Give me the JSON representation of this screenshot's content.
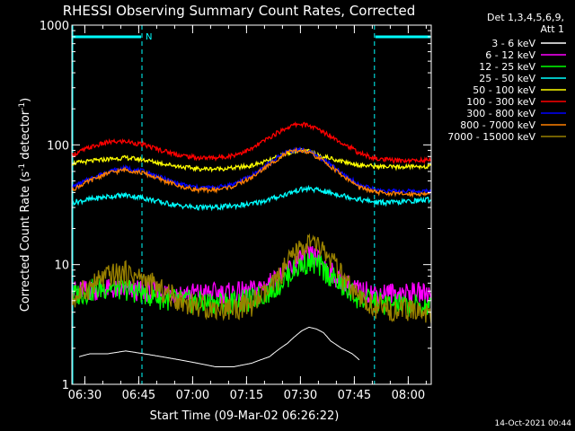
{
  "chart_data": {
    "type": "line",
    "title": "RHESSI Observing Summary Count Rates, Corrected",
    "xlabel": "Start Time (09-Mar-02 06:26:22)",
    "ylabel": "Corrected Count Rate (s",
    "ylabel_sup1": "-1",
    "ylabel_mid": " detector",
    "ylabel_sup2": "-1",
    "ylabel_end": ")",
    "yscale": "log",
    "ylim": [
      1,
      1000
    ],
    "xlim_minutes": [
      0,
      100
    ],
    "x_start_label": "06:26:22",
    "yticks": [
      {
        "value": 1,
        "label": "1"
      },
      {
        "value": 10,
        "label": "10"
      },
      {
        "value": 100,
        "label": "100"
      },
      {
        "value": 1000,
        "label": "1000"
      }
    ],
    "xticks": [
      {
        "t": 3.6,
        "label": "06:30"
      },
      {
        "t": 18.6,
        "label": "06:45"
      },
      {
        "t": 33.6,
        "label": "07:00"
      },
      {
        "t": 48.6,
        "label": "07:15"
      },
      {
        "t": 63.6,
        "label": "07:30"
      },
      {
        "t": 78.6,
        "label": "07:45"
      },
      {
        "t": 93.6,
        "label": "08:00"
      }
    ],
    "legend_header": [
      "Det 1,3,4,5,6,9,",
      "Att 1"
    ],
    "legend_position": "right",
    "night_intervals": [
      [
        0,
        19.5
      ],
      [
        84.2,
        100
      ]
    ],
    "night_marker_label": "N",
    "series": [
      {
        "name": "3 - 6 keV",
        "color": "#ffffff",
        "x": [
          2,
          5,
          10,
          15,
          20,
          25,
          30,
          35,
          40,
          45,
          50,
          55,
          60,
          62,
          64,
          66,
          68,
          70,
          72,
          75,
          78,
          80
        ],
        "y": [
          1.7,
          1.8,
          1.8,
          1.9,
          1.8,
          1.7,
          1.6,
          1.5,
          1.4,
          1.4,
          1.5,
          1.7,
          2.2,
          2.5,
          2.8,
          3.0,
          2.9,
          2.7,
          2.3,
          2.0,
          1.8,
          1.6
        ]
      },
      {
        "name": "6 - 12 keV",
        "color": "#ff00ff",
        "x": [
          0,
          10,
          20,
          30,
          40,
          45,
          50,
          55,
          58,
          61,
          64,
          66,
          68,
          70,
          73,
          76,
          80,
          85,
          90,
          95,
          100
        ],
        "y": [
          6,
          6.2,
          6,
          5.8,
          5.8,
          5.8,
          6,
          7,
          8,
          9.5,
          11,
          12,
          11.5,
          10,
          8,
          7,
          6,
          5.8,
          5.8,
          5.8,
          5.8
        ]
      },
      {
        "name": "12 - 25 keV",
        "color": "#00ff00",
        "x": [
          0,
          5,
          10,
          15,
          20,
          25,
          30,
          35,
          40,
          45,
          50,
          55,
          58,
          61,
          64,
          66,
          68,
          70,
          73,
          76,
          80,
          85,
          90,
          95,
          100
        ],
        "y": [
          5.5,
          6,
          6.5,
          6.2,
          5.8,
          5.2,
          5,
          4.8,
          4.8,
          4.8,
          5,
          6,
          7,
          8.5,
          10,
          10.5,
          10,
          9,
          7.5,
          6.2,
          5.2,
          4.8,
          4.6,
          4.5,
          4.5
        ]
      },
      {
        "name": "25 - 50 keV",
        "color": "#00ffff",
        "x": [
          0,
          5,
          10,
          15,
          20,
          25,
          30,
          35,
          40,
          45,
          50,
          55,
          60,
          63,
          66,
          70,
          75,
          80,
          85,
          90,
          95,
          100
        ],
        "y": [
          33,
          35,
          37,
          38,
          36,
          33,
          31,
          30,
          30,
          31,
          32,
          35,
          39,
          42,
          43,
          41,
          38,
          35,
          33,
          33,
          34,
          35
        ]
      },
      {
        "name": "50 - 100 keV",
        "color": "#ffff00",
        "x": [
          0,
          5,
          10,
          15,
          20,
          25,
          30,
          35,
          40,
          45,
          50,
          55,
          60,
          63,
          66,
          70,
          75,
          80,
          85,
          90,
          95,
          100
        ],
        "y": [
          70,
          73,
          76,
          78,
          75,
          70,
          66,
          63,
          63,
          64,
          67,
          74,
          85,
          90,
          88,
          80,
          73,
          68,
          66,
          65,
          66,
          66
        ]
      },
      {
        "name": "100 - 300 keV",
        "color": "#ff0000",
        "x": [
          0,
          5,
          10,
          15,
          20,
          25,
          30,
          35,
          40,
          45,
          50,
          55,
          60,
          63,
          66,
          70,
          75,
          80,
          85,
          90,
          95,
          100
        ],
        "y": [
          82,
          95,
          105,
          107,
          100,
          90,
          82,
          78,
          78,
          82,
          92,
          115,
          140,
          150,
          145,
          128,
          105,
          85,
          76,
          74,
          74,
          75
        ]
      },
      {
        "name": "300 - 800 keV",
        "color": "#0000ff",
        "x": [
          0,
          5,
          10,
          15,
          20,
          25,
          30,
          35,
          40,
          45,
          50,
          55,
          60,
          63,
          66,
          70,
          75,
          80,
          85,
          90,
          95,
          100
        ],
        "y": [
          44,
          52,
          60,
          64,
          60,
          53,
          47,
          44,
          44,
          47,
          55,
          70,
          88,
          92,
          88,
          75,
          58,
          46,
          42,
          41,
          41,
          41
        ]
      },
      {
        "name": "800 - 7000 keV",
        "color": "#ff8000",
        "x": [
          0,
          5,
          10,
          15,
          20,
          25,
          30,
          35,
          40,
          45,
          50,
          55,
          60,
          63,
          66,
          70,
          75,
          80,
          85,
          90,
          95,
          100
        ],
        "y": [
          42,
          50,
          58,
          62,
          58,
          51,
          45,
          42,
          42,
          45,
          53,
          68,
          86,
          90,
          86,
          73,
          56,
          44,
          40,
          39,
          39,
          39
        ]
      },
      {
        "name": "7000 - 15000 keV",
        "color": "#998000",
        "x": [
          0,
          5,
          10,
          15,
          20,
          25,
          30,
          35,
          40,
          45,
          50,
          55,
          58,
          61,
          64,
          66,
          68,
          70,
          73,
          76,
          80,
          85,
          90,
          95,
          100
        ],
        "y": [
          5,
          6.5,
          8,
          8.5,
          7.5,
          6,
          5,
          4.5,
          4.3,
          4.3,
          4.6,
          6,
          8,
          11,
          14,
          15,
          14.5,
          13,
          10,
          7,
          5,
          4.4,
          4.2,
          4.1,
          4
        ]
      }
    ],
    "timestamp": "14-Oct-2021 00:44"
  },
  "colors": {
    "background": "#000000",
    "axes": "#ffffff",
    "night_bar": "#00ffff"
  }
}
